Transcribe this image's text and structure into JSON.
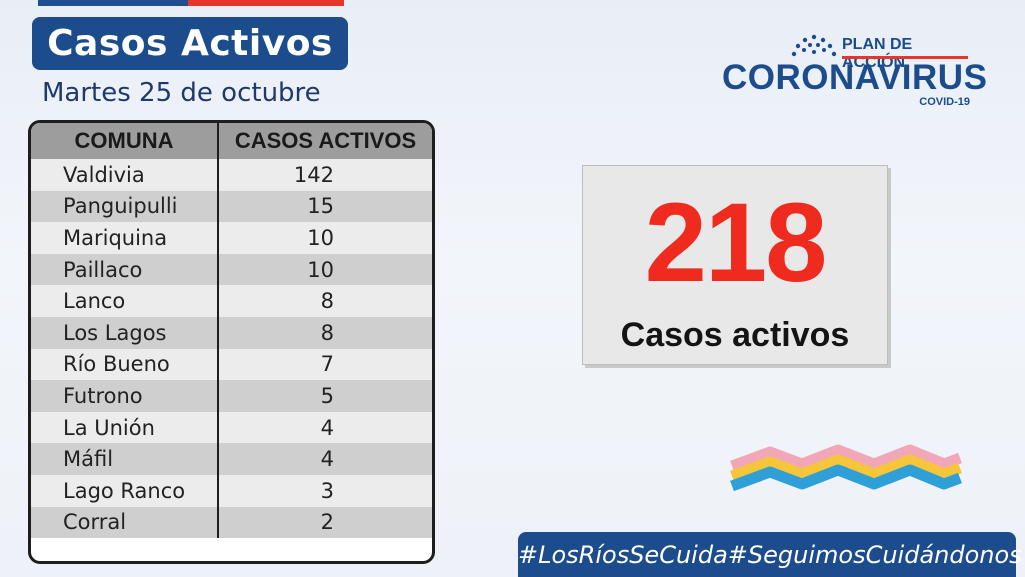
{
  "header": {
    "title": "Casos Activos",
    "date": "Martes 25 de octubre"
  },
  "logo": {
    "plan": "PLAN DE ACCIÓN",
    "name": "CORONAVIRUS",
    "sub": "COVID-19"
  },
  "table": {
    "headers": [
      "COMUNA",
      "CASOS ACTIVOS"
    ],
    "rows": [
      {
        "comuna": "Valdivia",
        "casos": "142"
      },
      {
        "comuna": "Panguipulli",
        "casos": "15"
      },
      {
        "comuna": "Mariquina",
        "casos": "10"
      },
      {
        "comuna": "Paillaco",
        "casos": "10"
      },
      {
        "comuna": "Lanco",
        "casos": "8"
      },
      {
        "comuna": "Los Lagos",
        "casos": "8"
      },
      {
        "comuna": "Río Bueno",
        "casos": "7"
      },
      {
        "comuna": "Futrono",
        "casos": "5"
      },
      {
        "comuna": "La Unión",
        "casos": "4"
      },
      {
        "comuna": "Máfil",
        "casos": "4"
      },
      {
        "comuna": "Lago Ranco",
        "casos": "3"
      },
      {
        "comuna": "Corral",
        "casos": "2"
      }
    ]
  },
  "total": {
    "value": "218",
    "label": "Casos activos"
  },
  "hashtags": [
    "#LosRíosSeCuida",
    "#SeguimosCuidándonos"
  ],
  "colors": {
    "brand_blue": "#1c4c8c",
    "accent_red": "#ee2b1e"
  }
}
